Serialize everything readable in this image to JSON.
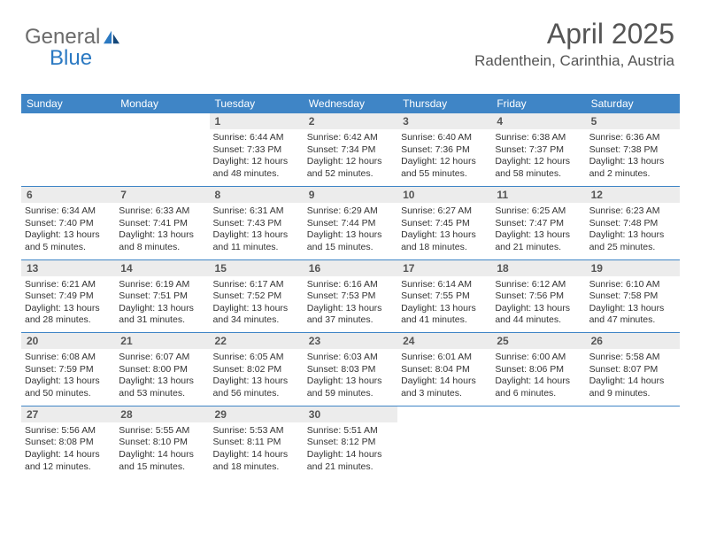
{
  "brand": {
    "part1": "General",
    "part2": "Blue"
  },
  "title": "April 2025",
  "location": "Radenthein, Carinthia, Austria",
  "colors": {
    "header_bg": "#3f85c6",
    "header_text": "#ffffff",
    "daynum_bg": "#ececec",
    "text": "#333333",
    "rule": "#3f85c6",
    "logo_gray": "#6b6b6b",
    "logo_blue": "#2b79c2"
  },
  "dow": [
    "Sunday",
    "Monday",
    "Tuesday",
    "Wednesday",
    "Thursday",
    "Friday",
    "Saturday"
  ],
  "weeks": [
    [
      {
        "n": "",
        "lines": []
      },
      {
        "n": "",
        "lines": []
      },
      {
        "n": "1",
        "lines": [
          "Sunrise: 6:44 AM",
          "Sunset: 7:33 PM",
          "Daylight: 12 hours and 48 minutes."
        ]
      },
      {
        "n": "2",
        "lines": [
          "Sunrise: 6:42 AM",
          "Sunset: 7:34 PM",
          "Daylight: 12 hours and 52 minutes."
        ]
      },
      {
        "n": "3",
        "lines": [
          "Sunrise: 6:40 AM",
          "Sunset: 7:36 PM",
          "Daylight: 12 hours and 55 minutes."
        ]
      },
      {
        "n": "4",
        "lines": [
          "Sunrise: 6:38 AM",
          "Sunset: 7:37 PM",
          "Daylight: 12 hours and 58 minutes."
        ]
      },
      {
        "n": "5",
        "lines": [
          "Sunrise: 6:36 AM",
          "Sunset: 7:38 PM",
          "Daylight: 13 hours and 2 minutes."
        ]
      }
    ],
    [
      {
        "n": "6",
        "lines": [
          "Sunrise: 6:34 AM",
          "Sunset: 7:40 PM",
          "Daylight: 13 hours and 5 minutes."
        ]
      },
      {
        "n": "7",
        "lines": [
          "Sunrise: 6:33 AM",
          "Sunset: 7:41 PM",
          "Daylight: 13 hours and 8 minutes."
        ]
      },
      {
        "n": "8",
        "lines": [
          "Sunrise: 6:31 AM",
          "Sunset: 7:43 PM",
          "Daylight: 13 hours and 11 minutes."
        ]
      },
      {
        "n": "9",
        "lines": [
          "Sunrise: 6:29 AM",
          "Sunset: 7:44 PM",
          "Daylight: 13 hours and 15 minutes."
        ]
      },
      {
        "n": "10",
        "lines": [
          "Sunrise: 6:27 AM",
          "Sunset: 7:45 PM",
          "Daylight: 13 hours and 18 minutes."
        ]
      },
      {
        "n": "11",
        "lines": [
          "Sunrise: 6:25 AM",
          "Sunset: 7:47 PM",
          "Daylight: 13 hours and 21 minutes."
        ]
      },
      {
        "n": "12",
        "lines": [
          "Sunrise: 6:23 AM",
          "Sunset: 7:48 PM",
          "Daylight: 13 hours and 25 minutes."
        ]
      }
    ],
    [
      {
        "n": "13",
        "lines": [
          "Sunrise: 6:21 AM",
          "Sunset: 7:49 PM",
          "Daylight: 13 hours and 28 minutes."
        ]
      },
      {
        "n": "14",
        "lines": [
          "Sunrise: 6:19 AM",
          "Sunset: 7:51 PM",
          "Daylight: 13 hours and 31 minutes."
        ]
      },
      {
        "n": "15",
        "lines": [
          "Sunrise: 6:17 AM",
          "Sunset: 7:52 PM",
          "Daylight: 13 hours and 34 minutes."
        ]
      },
      {
        "n": "16",
        "lines": [
          "Sunrise: 6:16 AM",
          "Sunset: 7:53 PM",
          "Daylight: 13 hours and 37 minutes."
        ]
      },
      {
        "n": "17",
        "lines": [
          "Sunrise: 6:14 AM",
          "Sunset: 7:55 PM",
          "Daylight: 13 hours and 41 minutes."
        ]
      },
      {
        "n": "18",
        "lines": [
          "Sunrise: 6:12 AM",
          "Sunset: 7:56 PM",
          "Daylight: 13 hours and 44 minutes."
        ]
      },
      {
        "n": "19",
        "lines": [
          "Sunrise: 6:10 AM",
          "Sunset: 7:58 PM",
          "Daylight: 13 hours and 47 minutes."
        ]
      }
    ],
    [
      {
        "n": "20",
        "lines": [
          "Sunrise: 6:08 AM",
          "Sunset: 7:59 PM",
          "Daylight: 13 hours and 50 minutes."
        ]
      },
      {
        "n": "21",
        "lines": [
          "Sunrise: 6:07 AM",
          "Sunset: 8:00 PM",
          "Daylight: 13 hours and 53 minutes."
        ]
      },
      {
        "n": "22",
        "lines": [
          "Sunrise: 6:05 AM",
          "Sunset: 8:02 PM",
          "Daylight: 13 hours and 56 minutes."
        ]
      },
      {
        "n": "23",
        "lines": [
          "Sunrise: 6:03 AM",
          "Sunset: 8:03 PM",
          "Daylight: 13 hours and 59 minutes."
        ]
      },
      {
        "n": "24",
        "lines": [
          "Sunrise: 6:01 AM",
          "Sunset: 8:04 PM",
          "Daylight: 14 hours and 3 minutes."
        ]
      },
      {
        "n": "25",
        "lines": [
          "Sunrise: 6:00 AM",
          "Sunset: 8:06 PM",
          "Daylight: 14 hours and 6 minutes."
        ]
      },
      {
        "n": "26",
        "lines": [
          "Sunrise: 5:58 AM",
          "Sunset: 8:07 PM",
          "Daylight: 14 hours and 9 minutes."
        ]
      }
    ],
    [
      {
        "n": "27",
        "lines": [
          "Sunrise: 5:56 AM",
          "Sunset: 8:08 PM",
          "Daylight: 14 hours and 12 minutes."
        ]
      },
      {
        "n": "28",
        "lines": [
          "Sunrise: 5:55 AM",
          "Sunset: 8:10 PM",
          "Daylight: 14 hours and 15 minutes."
        ]
      },
      {
        "n": "29",
        "lines": [
          "Sunrise: 5:53 AM",
          "Sunset: 8:11 PM",
          "Daylight: 14 hours and 18 minutes."
        ]
      },
      {
        "n": "30",
        "lines": [
          "Sunrise: 5:51 AM",
          "Sunset: 8:12 PM",
          "Daylight: 14 hours and 21 minutes."
        ]
      },
      {
        "n": "",
        "lines": []
      },
      {
        "n": "",
        "lines": []
      },
      {
        "n": "",
        "lines": []
      }
    ]
  ]
}
